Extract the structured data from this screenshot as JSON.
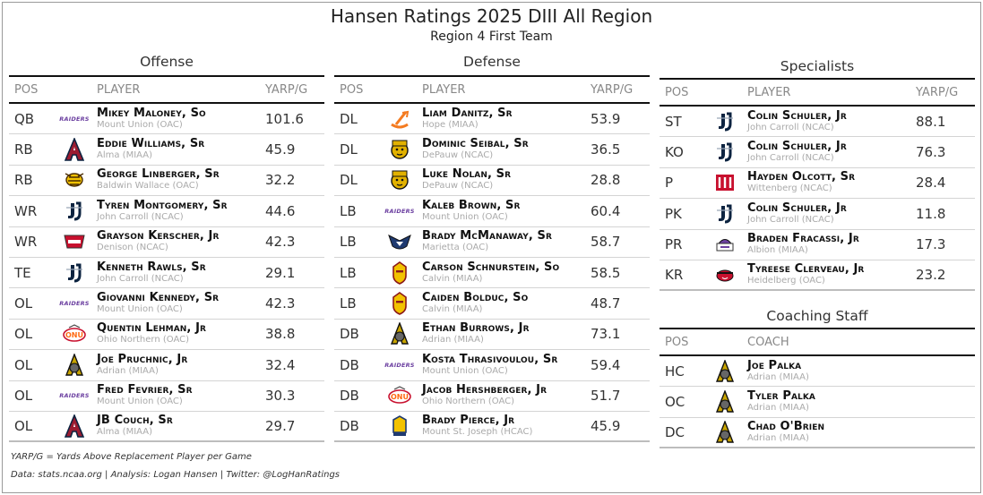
{
  "title": "Hansen Ratings 2025 DIII All Region",
  "subtitle": "Region 4 First Team",
  "offense": {
    "title": "Offense",
    "headers": {
      "pos": "POS",
      "player": "PLAYER",
      "val": "YARP/G"
    },
    "rows": [
      {
        "pos": "QB",
        "name": "Mikey Maloney, So",
        "team": "Mount Union (OAC)",
        "val": "101.6",
        "logo": "raiders-logo"
      },
      {
        "pos": "RB",
        "name": "Eddie Williams, Sr",
        "team": "Alma (MIAA)",
        "val": "45.9",
        "logo": "alma-a-logo"
      },
      {
        "pos": "RB",
        "name": "George Linberger, Sr",
        "team": "Baldwin Wallace (OAC)",
        "val": "32.2",
        "logo": "yellow-jacket-logo"
      },
      {
        "pos": "WR",
        "name": "Tyren Montgomery, Sr",
        "team": "John Carroll (NCAC)",
        "val": "44.6",
        "logo": "jcu-logo"
      },
      {
        "pos": "WR",
        "name": "Grayson Kerscher, Jr",
        "team": "Denison (NCAC)",
        "val": "42.3",
        "logo": "denison-logo"
      },
      {
        "pos": "TE",
        "name": "Kenneth Rawls, Sr",
        "team": "John Carroll (NCAC)",
        "val": "29.1",
        "logo": "jcu-logo"
      },
      {
        "pos": "OL",
        "name": "Giovanni Kennedy, Sr",
        "team": "Mount Union (OAC)",
        "val": "42.3",
        "logo": "raiders-logo"
      },
      {
        "pos": "OL",
        "name": "Quentin Lehman, Jr",
        "team": "Ohio Northern (OAC)",
        "val": "38.8",
        "logo": "onu-logo"
      },
      {
        "pos": "OL",
        "name": "Joe Pruchnic, Jr",
        "team": "Adrian (MIAA)",
        "val": "32.4",
        "logo": "adrian-bulldog-logo"
      },
      {
        "pos": "OL",
        "name": "Fred Fevrier, Sr",
        "team": "Mount Union (OAC)",
        "val": "30.3",
        "logo": "raiders-logo"
      },
      {
        "pos": "OL",
        "name": "JB Couch, Sr",
        "team": "Alma (MIAA)",
        "val": "29.7",
        "logo": "alma-a-logo"
      }
    ]
  },
  "defense": {
    "title": "Defense",
    "headers": {
      "pos": "POS",
      "player": "PLAYER",
      "val": "YARP/G"
    },
    "rows": [
      {
        "pos": "DL",
        "name": "Liam Danitz, Sr",
        "team": "Hope (MIAA)",
        "val": "53.9",
        "logo": "hope-anchor-logo"
      },
      {
        "pos": "DL",
        "name": "Dominic Seibal, Sr",
        "team": "DePauw (NCAC)",
        "val": "36.5",
        "logo": "depauw-tiger-logo"
      },
      {
        "pos": "DL",
        "name": "Luke Nolan, Sr",
        "team": "DePauw (NCAC)",
        "val": "28.8",
        "logo": "depauw-tiger-logo"
      },
      {
        "pos": "LB",
        "name": "Kaleb Brown, Sr",
        "team": "Mount Union (OAC)",
        "val": "60.4",
        "logo": "raiders-logo"
      },
      {
        "pos": "LB",
        "name": "Brady McManaway, Sr",
        "team": "Marietta (OAC)",
        "val": "58.7",
        "logo": "marietta-pioneer-logo"
      },
      {
        "pos": "LB",
        "name": "Carson Schnurstein, So",
        "team": "Calvin (MIAA)",
        "val": "58.5",
        "logo": "calvin-knight-logo"
      },
      {
        "pos": "LB",
        "name": "Caiden Bolduc, So",
        "team": "Calvin (MIAA)",
        "val": "48.7",
        "logo": "calvin-knight-logo"
      },
      {
        "pos": "DB",
        "name": "Ethan Burrows, Jr",
        "team": "Adrian (MIAA)",
        "val": "73.1",
        "logo": "adrian-bulldog-logo"
      },
      {
        "pos": "DB",
        "name": "Kosta Thrasivoulou, Sr",
        "team": "Mount Union (OAC)",
        "val": "59.4",
        "logo": "raiders-logo"
      },
      {
        "pos": "DB",
        "name": "Jacob Hershberger, Jr",
        "team": "Ohio Northern (OAC)",
        "val": "51.7",
        "logo": "onu-logo"
      },
      {
        "pos": "DB",
        "name": "Brady Pierce, Jr",
        "team": "Mount St. Joseph (HCAC)",
        "val": "45.9",
        "logo": "msj-lion-logo"
      }
    ]
  },
  "specialists": {
    "title": "Specialists",
    "headers": {
      "pos": "POS",
      "player": "PLAYER",
      "val": "YARP/G"
    },
    "rows": [
      {
        "pos": "ST",
        "name": "Colin Schuler, Jr",
        "team": "John Carroll (NCAC)",
        "val": "88.1",
        "logo": "jcu-logo"
      },
      {
        "pos": "KO",
        "name": "Colin Schuler, Jr",
        "team": "John Carroll (NCAC)",
        "val": "76.3",
        "logo": "jcu-logo"
      },
      {
        "pos": "P",
        "name": "Hayden Olcott, Sr",
        "team": "Wittenberg (NCAC)",
        "val": "28.4",
        "logo": "wittenberg-w-logo"
      },
      {
        "pos": "PK",
        "name": "Colin Schuler, Jr",
        "team": "John Carroll (NCAC)",
        "val": "11.8",
        "logo": "jcu-logo"
      },
      {
        "pos": "PR",
        "name": "Braden Fracassi, Jr",
        "team": "Albion (MIAA)",
        "val": "17.3",
        "logo": "albion-britons-logo"
      },
      {
        "pos": "KR",
        "name": "Tyreese Clerveau, Jr",
        "team": "Heidelberg (OAC)",
        "val": "23.2",
        "logo": "heidelberg-student-prince-logo"
      }
    ]
  },
  "coaching": {
    "title": "Coaching Staff",
    "headers": {
      "pos": "POS",
      "coach": "COACH"
    },
    "rows": [
      {
        "pos": "HC",
        "name": "Joe Palka",
        "team": "Adrian (MIAA)",
        "logo": "adrian-bulldog-logo"
      },
      {
        "pos": "OC",
        "name": "Tyler Palka",
        "team": "Adrian (MIAA)",
        "logo": "adrian-bulldog-logo"
      },
      {
        "pos": "DC",
        "name": "Chad O'Brien",
        "team": "Adrian (MIAA)",
        "logo": "adrian-bulldog-logo"
      }
    ]
  },
  "footer": {
    "note": "YARP/G = Yards Above Replacement Player per Game",
    "credits": "Data: stats.ncaa.org | Analysis: Logan Hansen | Twitter: @LogHanRatings"
  },
  "logo_texts": {
    "raiders": "RAIDERS"
  },
  "colors": {
    "raiders": "#6b3fa0",
    "alma": "#9b1b30",
    "jcu": "#0c2340",
    "adrian": "#c8a400",
    "hope": "#f47b20",
    "depauw": "#e1b100",
    "denison": "#c8102e",
    "wittenberg": "#c8102e",
    "marietta": "#1f3a70"
  }
}
